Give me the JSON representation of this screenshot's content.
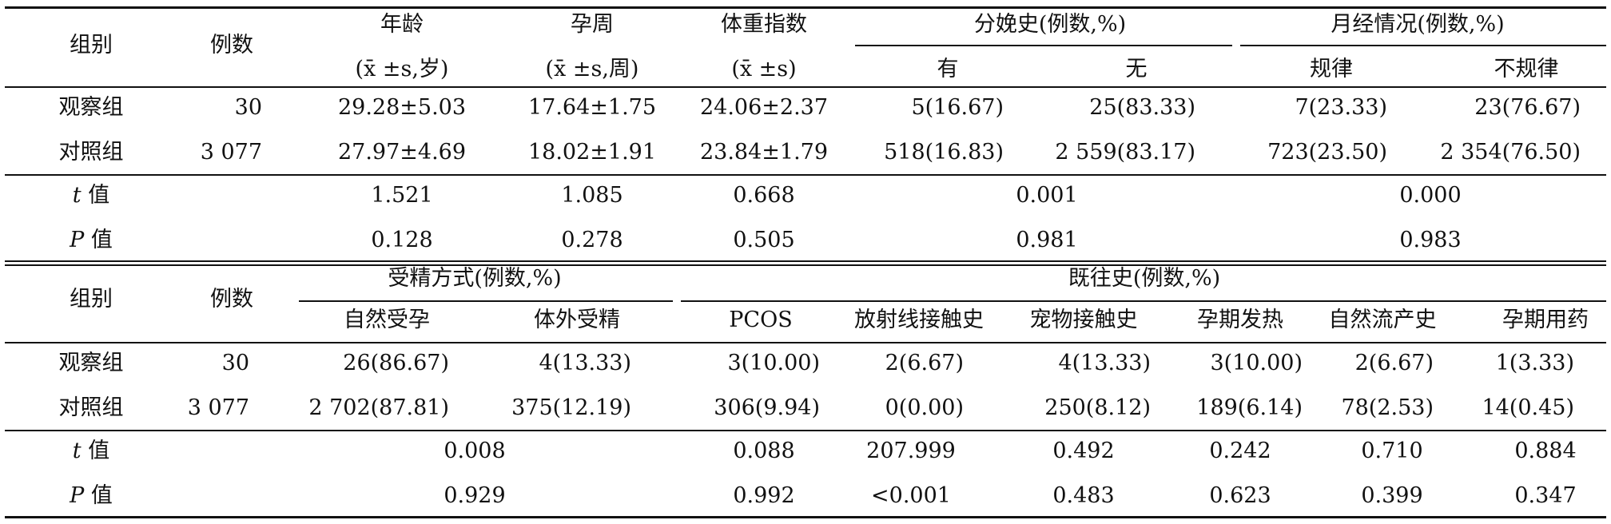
{
  "table1": {
    "headers": {
      "group": "组别",
      "count": "例数",
      "age": "年龄",
      "age_unit": "(x̄ ±s,岁)",
      "gest": "孕周",
      "gest_unit": "(x̄ ±s,周)",
      "bmi": "体重指数",
      "bmi_unit": "(x̄ ±s)",
      "delivery": "分娩史(例数,%)",
      "delivery_yes": "有",
      "delivery_no": "无",
      "menses": "月经情况(例数,%)",
      "menses_regular": "规律",
      "menses_irregular": "不规律"
    },
    "rows": [
      {
        "group": "观察组",
        "count": "30",
        "age": "29.28±5.03",
        "gest": "17.64±1.75",
        "bmi": "24.06±2.37",
        "del_yes": "5(16.67)",
        "del_no": "25(83.33)",
        "men_reg": "7(23.33)",
        "men_irr": "23(76.67)"
      },
      {
        "group": "对照组",
        "count": "3 077",
        "age": "27.97±4.69",
        "gest": "18.02±1.91",
        "bmi": "23.84±1.79",
        "del_yes": "518(16.83)",
        "del_no": "2 559(83.17)",
        "men_reg": "723(23.50)",
        "men_irr": "2 354(76.50)"
      }
    ],
    "stats": [
      {
        "sym": "t",
        "label": "值",
        "age": "1.521",
        "gest": "1.085",
        "bmi": "0.668",
        "delivery": "0.001",
        "menses": "0.000"
      },
      {
        "sym": "P",
        "label": "值",
        "age": "0.128",
        "gest": "0.278",
        "bmi": "0.505",
        "delivery": "0.981",
        "menses": "0.983"
      }
    ]
  },
  "table2": {
    "headers": {
      "group": "组别",
      "count": "例数",
      "fert": "受精方式(例数,%)",
      "natural": "自然受孕",
      "ivf": "体外受精",
      "history": "既往史(例数,%)",
      "pcos": "PCOS",
      "radiation": "放射线接触史",
      "pet": "宠物接触史",
      "fever": "孕期发热",
      "abortion": "自然流产史",
      "drug": "孕期用药"
    },
    "rows": [
      {
        "group": "观察组",
        "count": "30",
        "natural": "26(86.67)",
        "ivf": "4(13.33)",
        "pcos": "3(10.00)",
        "radiation": "2(6.67)",
        "pet": "4(13.33)",
        "fever": "3(10.00)",
        "abortion": "2(6.67)",
        "drug": "1(3.33)"
      },
      {
        "group": "对照组",
        "count": "3 077",
        "natural": "2 702(87.81)",
        "ivf": "375(12.19)",
        "pcos": "306(9.94)",
        "radiation": "0(0.00)",
        "pet": "250(8.12)",
        "fever": "189(6.14)",
        "abortion": "78(2.53)",
        "drug": "14(0.45)"
      }
    ],
    "stats": [
      {
        "sym": "t",
        "label": "值",
        "fert": "0.008",
        "pcos": "0.088",
        "radiation": "207.999",
        "pet": "0.492",
        "fever": "0.242",
        "abortion": "0.710",
        "drug": "0.884"
      },
      {
        "sym": "P",
        "label": "值",
        "fert": "0.929",
        "pcos": "0.992",
        "radiation": "<0.001",
        "pet": "0.483",
        "fever": "0.623",
        "abortion": "0.399",
        "drug": "0.347"
      }
    ]
  }
}
